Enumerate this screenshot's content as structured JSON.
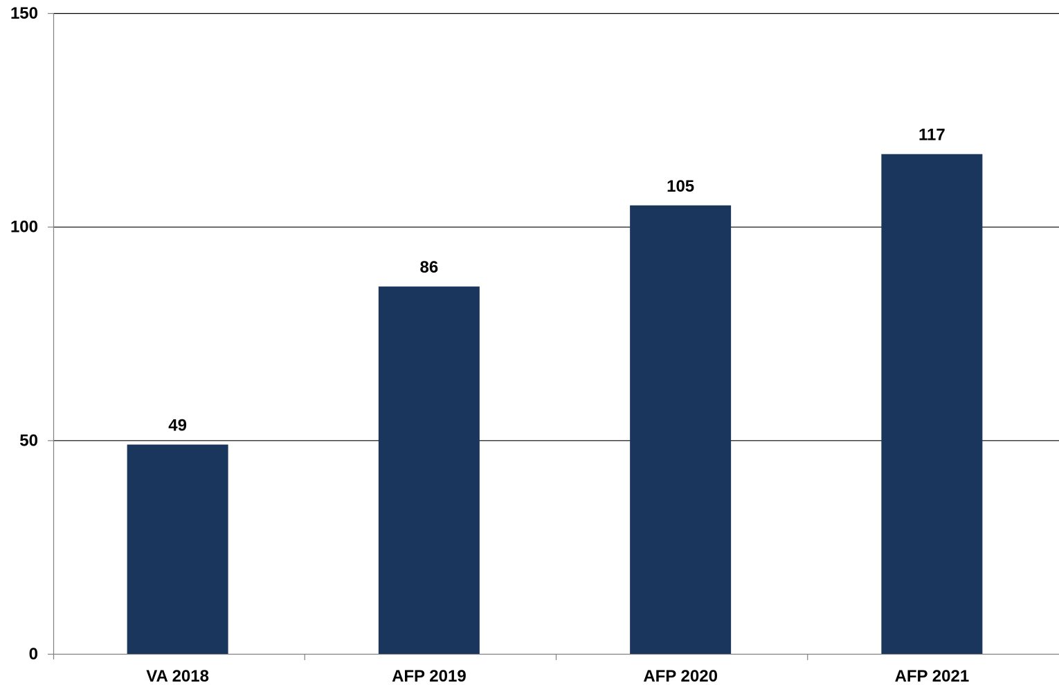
{
  "chart_data": {
    "type": "bar",
    "categories": [
      "VA 2018",
      "AFP 2019",
      "AFP 2020",
      "AFP 2021"
    ],
    "values": [
      49,
      86,
      105,
      117
    ],
    "data_labels": [
      "49",
      "86",
      "105",
      "117"
    ],
    "ylim": [
      0,
      150
    ],
    "y_ticks": [
      0,
      50,
      100,
      150
    ],
    "y_tick_labels": [
      "0",
      "50",
      "100",
      "150"
    ],
    "grid": true,
    "legend": "none",
    "bar_color": "#1b365d",
    "gridline_color": "#000000"
  }
}
